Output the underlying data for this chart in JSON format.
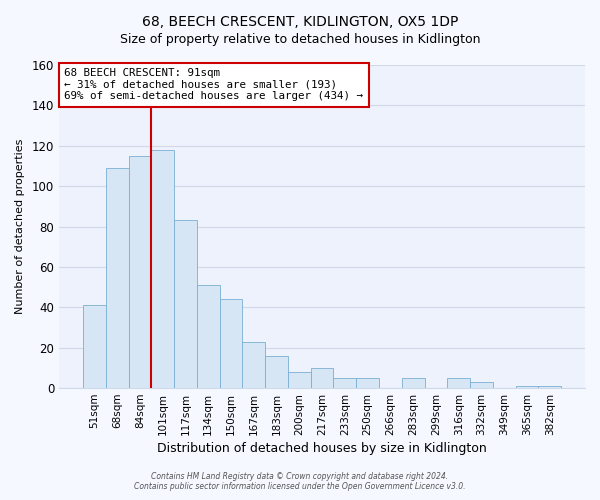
{
  "title": "68, BEECH CRESCENT, KIDLINGTON, OX5 1DP",
  "subtitle": "Size of property relative to detached houses in Kidlington",
  "xlabel": "Distribution of detached houses by size in Kidlington",
  "ylabel": "Number of detached properties",
  "bar_labels": [
    "51sqm",
    "68sqm",
    "84sqm",
    "101sqm",
    "117sqm",
    "134sqm",
    "150sqm",
    "167sqm",
    "183sqm",
    "200sqm",
    "217sqm",
    "233sqm",
    "250sqm",
    "266sqm",
    "283sqm",
    "299sqm",
    "316sqm",
    "332sqm",
    "349sqm",
    "365sqm",
    "382sqm"
  ],
  "bar_values": [
    41,
    109,
    115,
    118,
    83,
    51,
    44,
    23,
    16,
    8,
    10,
    5,
    5,
    0,
    5,
    0,
    5,
    3,
    0,
    1,
    1
  ],
  "bar_color": "#d6e6f5",
  "bar_edge_color": "#7aafd4",
  "ylim": [
    0,
    160
  ],
  "yticks": [
    0,
    20,
    40,
    60,
    80,
    100,
    120,
    140,
    160
  ],
  "vline_position": 2.5,
  "property_line_label": "68 BEECH CRESCENT: 91sqm",
  "annotation_line1": "← 31% of detached houses are smaller (193)",
  "annotation_line2": "69% of semi-detached houses are larger (434) →",
  "annotation_box_color": "#ffffff",
  "annotation_box_edge": "#cc0000",
  "vline_color": "#cc0000",
  "footer1": "Contains HM Land Registry data © Crown copyright and database right 2024.",
  "footer2": "Contains public sector information licensed under the Open Government Licence v3.0.",
  "bg_color": "#f5f8ff",
  "plot_bg_color": "#eef2fc",
  "grid_color": "#d0d8ea",
  "title_fontsize": 10,
  "subtitle_fontsize": 9,
  "ylabel_fontsize": 8,
  "xlabel_fontsize": 9
}
